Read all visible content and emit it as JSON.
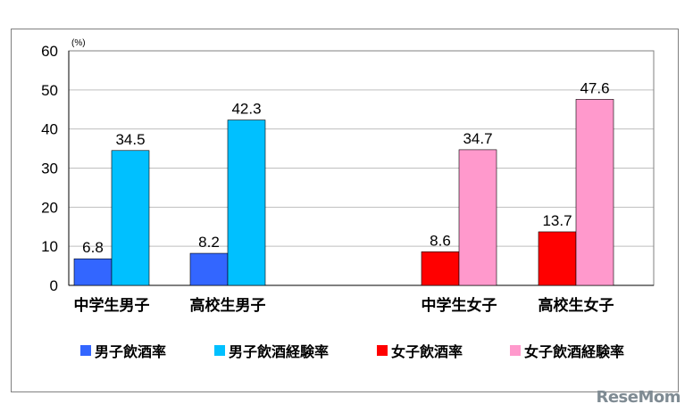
{
  "chart_data": {
    "type": "bar",
    "ylabel": "(%)",
    "ylim": [
      0,
      60
    ],
    "yticks": [
      0,
      10,
      20,
      30,
      40,
      50,
      60
    ],
    "grid": true,
    "categories": [
      "中学生男子",
      "高校生男子",
      "中学生女子",
      "高校生女子"
    ],
    "series": [
      {
        "name": "男子飲酒率",
        "color": "#3366ff",
        "values": [
          6.8,
          8.2,
          null,
          null
        ],
        "labels": [
          "6.8",
          "8.2",
          "",
          ""
        ]
      },
      {
        "name": "男子飲酒経験率",
        "color": "#00c0ff",
        "values": [
          34.5,
          42.3,
          null,
          null
        ],
        "labels": [
          "34.5",
          "42.3",
          "",
          ""
        ]
      },
      {
        "name": "女子飲酒率",
        "color": "#ff0000",
        "values": [
          null,
          null,
          8.6,
          13.7
        ],
        "labels": [
          "",
          "",
          "8.6",
          "13.7"
        ]
      },
      {
        "name": "女子飲酒経験率",
        "color": "#ff99cc",
        "values": [
          null,
          null,
          34.7,
          47.6
        ],
        "labels": [
          "",
          "",
          "34.7",
          "47.6"
        ]
      }
    ],
    "legend_position": "bottom"
  },
  "watermark": "ReseMom"
}
